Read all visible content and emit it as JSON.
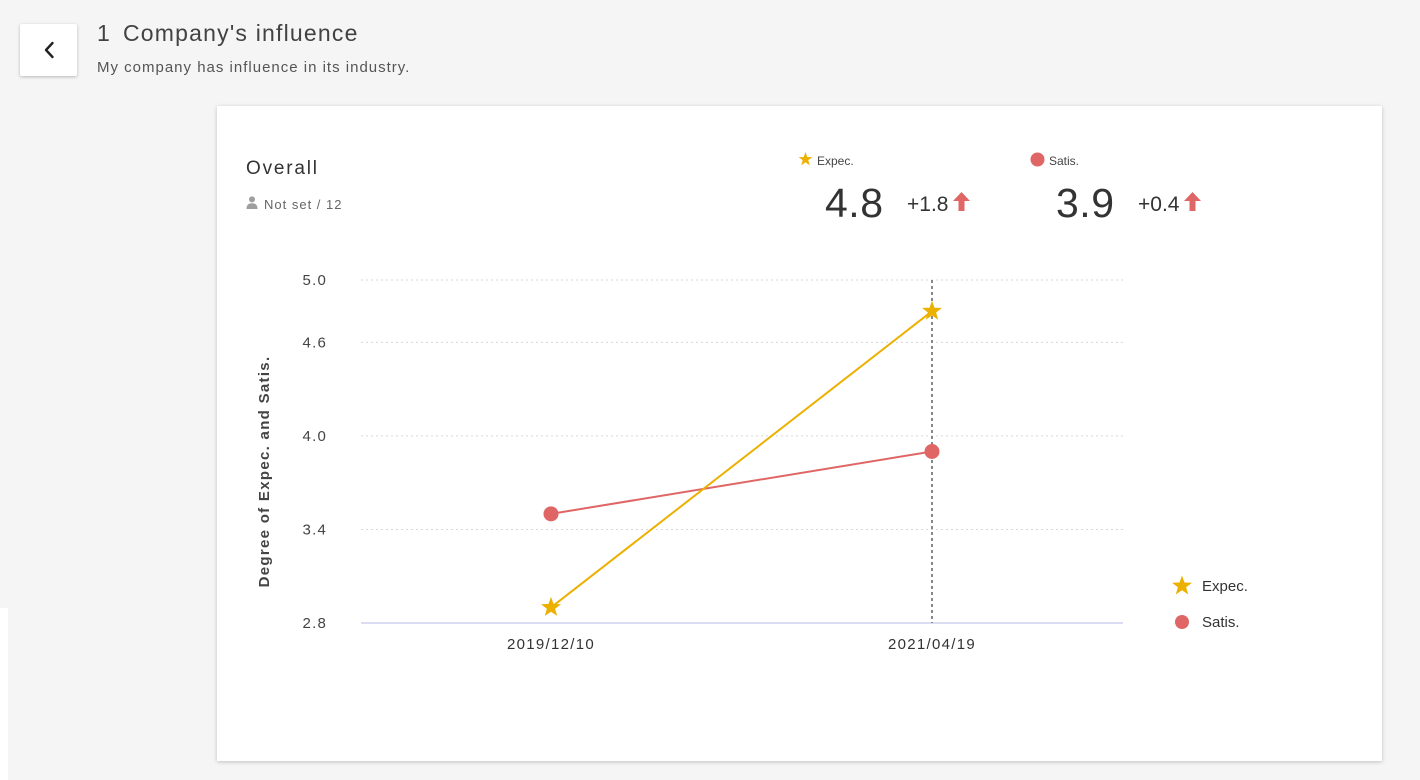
{
  "header": {
    "question_number": "1",
    "title": "Company's influence",
    "subtitle": "My company has influence in its industry."
  },
  "icons": {
    "back": "chevron-left-icon",
    "person": "person-icon",
    "expec_marker": "star-icon",
    "satis_marker": "circle-icon",
    "increase": "arrow-up-icon"
  },
  "colors": {
    "expec": "#EBB000",
    "satis": "#E06666",
    "increase_arrow": "#E06666"
  },
  "overall": {
    "title": "Overall",
    "respondents": "Not set / 12"
  },
  "summary": {
    "expec": {
      "label": "Expec.",
      "value": "4.8",
      "change": "+1.8"
    },
    "satis": {
      "label": "Satis.",
      "value": "3.9",
      "change": "+0.4"
    }
  },
  "chart_data": {
    "type": "line",
    "title": "",
    "xlabel": "",
    "ylabel": "Degree of Expec. and Satis.",
    "x": [
      "2019/12/10",
      "2021/04/19"
    ],
    "y_ticks": [
      "5.0",
      "4.6",
      "4.0",
      "3.4",
      "2.8"
    ],
    "ylim": [
      2.8,
      5.0
    ],
    "grid": true,
    "legend_position": "bottom-right",
    "highlighted_x": "2021/04/19",
    "series": [
      {
        "name": "Expec.",
        "marker": "star",
        "values": [
          2.9,
          4.8
        ]
      },
      {
        "name": "Satis.",
        "marker": "circle",
        "values": [
          3.5,
          3.9
        ]
      }
    ]
  }
}
